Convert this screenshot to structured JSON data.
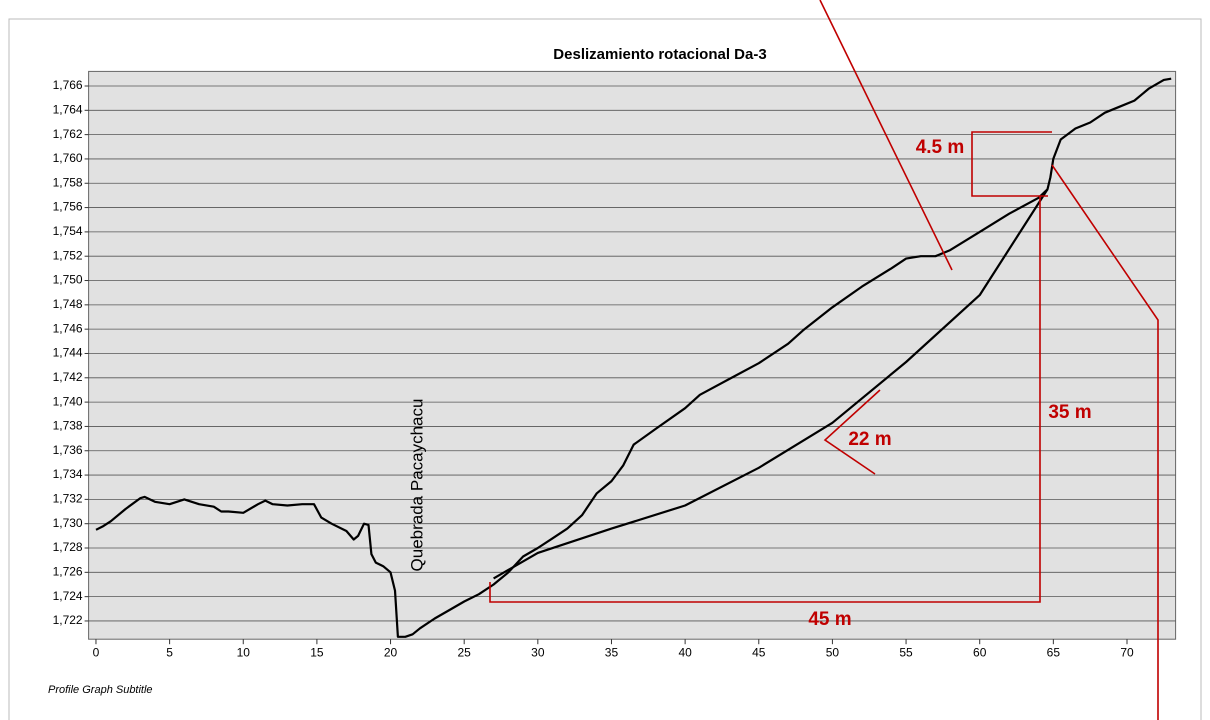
{
  "chart_data": {
    "type": "line",
    "title": "Deslizamiento rotacional Da-3",
    "subtitle": "Profile Graph Subtitle",
    "xlim": [
      -0.5,
      73.3
    ],
    "ylim": [
      1720.5,
      1767.2
    ],
    "xticks": [
      0,
      5,
      10,
      15,
      20,
      25,
      30,
      35,
      40,
      45,
      50,
      55,
      60,
      65,
      70
    ],
    "yticks": [
      {
        "value": 1722,
        "label": "1,722"
      },
      {
        "value": 1724,
        "label": "1,724"
      },
      {
        "value": 1726,
        "label": "1,726"
      },
      {
        "value": 1728,
        "label": "1,728"
      },
      {
        "value": 1730,
        "label": "1,730"
      },
      {
        "value": 1732,
        "label": "1,732"
      },
      {
        "value": 1734,
        "label": "1,734"
      },
      {
        "value": 1736,
        "label": "1,736"
      },
      {
        "value": 1738,
        "label": "1,738"
      },
      {
        "value": 1740,
        "label": "1,740"
      },
      {
        "value": 1742,
        "label": "1,742"
      },
      {
        "value": 1744,
        "label": "1,744"
      },
      {
        "value": 1746,
        "label": "1,746"
      },
      {
        "value": 1748,
        "label": "1,748"
      },
      {
        "value": 1750,
        "label": "1,750"
      },
      {
        "value": 1752,
        "label": "1,752"
      },
      {
        "value": 1754,
        "label": "1,754"
      },
      {
        "value": 1756,
        "label": "1,756"
      },
      {
        "value": 1758,
        "label": "1,758"
      },
      {
        "value": 1760,
        "label": "1,760"
      },
      {
        "value": 1762,
        "label": "1,762"
      },
      {
        "value": 1764,
        "label": "1,764"
      },
      {
        "value": 1766,
        "label": "1,766"
      }
    ],
    "grid": true,
    "series": [
      {
        "color": "#000000",
        "x": [
          0,
          0.5,
          1,
          2,
          3,
          3.3,
          4,
          5,
          6,
          7,
          8,
          8.5,
          9,
          10,
          11,
          11.5,
          12,
          13,
          14,
          14.8,
          15.3,
          16,
          17,
          17.5,
          17.8,
          18.2,
          18.5,
          18.7,
          19,
          19.5,
          20,
          20.3,
          20.5,
          21,
          21.5,
          22,
          23,
          24,
          25,
          26,
          27,
          28,
          29,
          30,
          31,
          32,
          33,
          34,
          35,
          35.8,
          36.5,
          38,
          40,
          41,
          43,
          45,
          47,
          48,
          50,
          52,
          54,
          55,
          56,
          57,
          58,
          60,
          62,
          64,
          64.6,
          64.8,
          65,
          65.5,
          66.5,
          67.5,
          68.5,
          69.5,
          70.5,
          71.5,
          72.5,
          73
        ],
        "values": [
          1729.5,
          1729.8,
          1730.2,
          1731.2,
          1732.1,
          1732.2,
          1731.8,
          1731.6,
          1732.0,
          1731.6,
          1731.4,
          1731.0,
          1731.0,
          1730.9,
          1731.6,
          1731.9,
          1731.6,
          1731.5,
          1731.6,
          1731.6,
          1730.5,
          1730.0,
          1729.4,
          1728.7,
          1729.0,
          1730.0,
          1729.9,
          1727.5,
          1726.8,
          1726.5,
          1726.0,
          1724.5,
          1720.7,
          1720.7,
          1720.9,
          1721.4,
          1722.2,
          1722.9,
          1723.6,
          1724.2,
          1725.0,
          1726.0,
          1727.3,
          1728.0,
          1728.8,
          1729.6,
          1730.7,
          1732.5,
          1733.5,
          1734.8,
          1736.5,
          1737.8,
          1739.5,
          1740.6,
          1741.9,
          1743.2,
          1744.8,
          1745.9,
          1747.8,
          1749.5,
          1751.0,
          1751.8,
          1752.0,
          1752.0,
          1752.5,
          1754.0,
          1755.5,
          1756.8,
          1757.5,
          1758.5,
          1760.0,
          1761.6,
          1762.5,
          1763.0,
          1763.8,
          1764.3,
          1764.8,
          1765.8,
          1766.5,
          1766.6
        ]
      },
      {
        "color": "#000000",
        "x": [
          27,
          30,
          35,
          40,
          45,
          50,
          55,
          60,
          64.6
        ],
        "values": [
          1725.5,
          1727.6,
          1729.6,
          1731.5,
          1734.6,
          1738.3,
          1743.3,
          1748.8,
          1757.5
        ]
      }
    ],
    "annotations": [
      "Quebrada Pacaychacu",
      "4.5 m",
      "22 m",
      "35 m",
      "45 m"
    ]
  }
}
